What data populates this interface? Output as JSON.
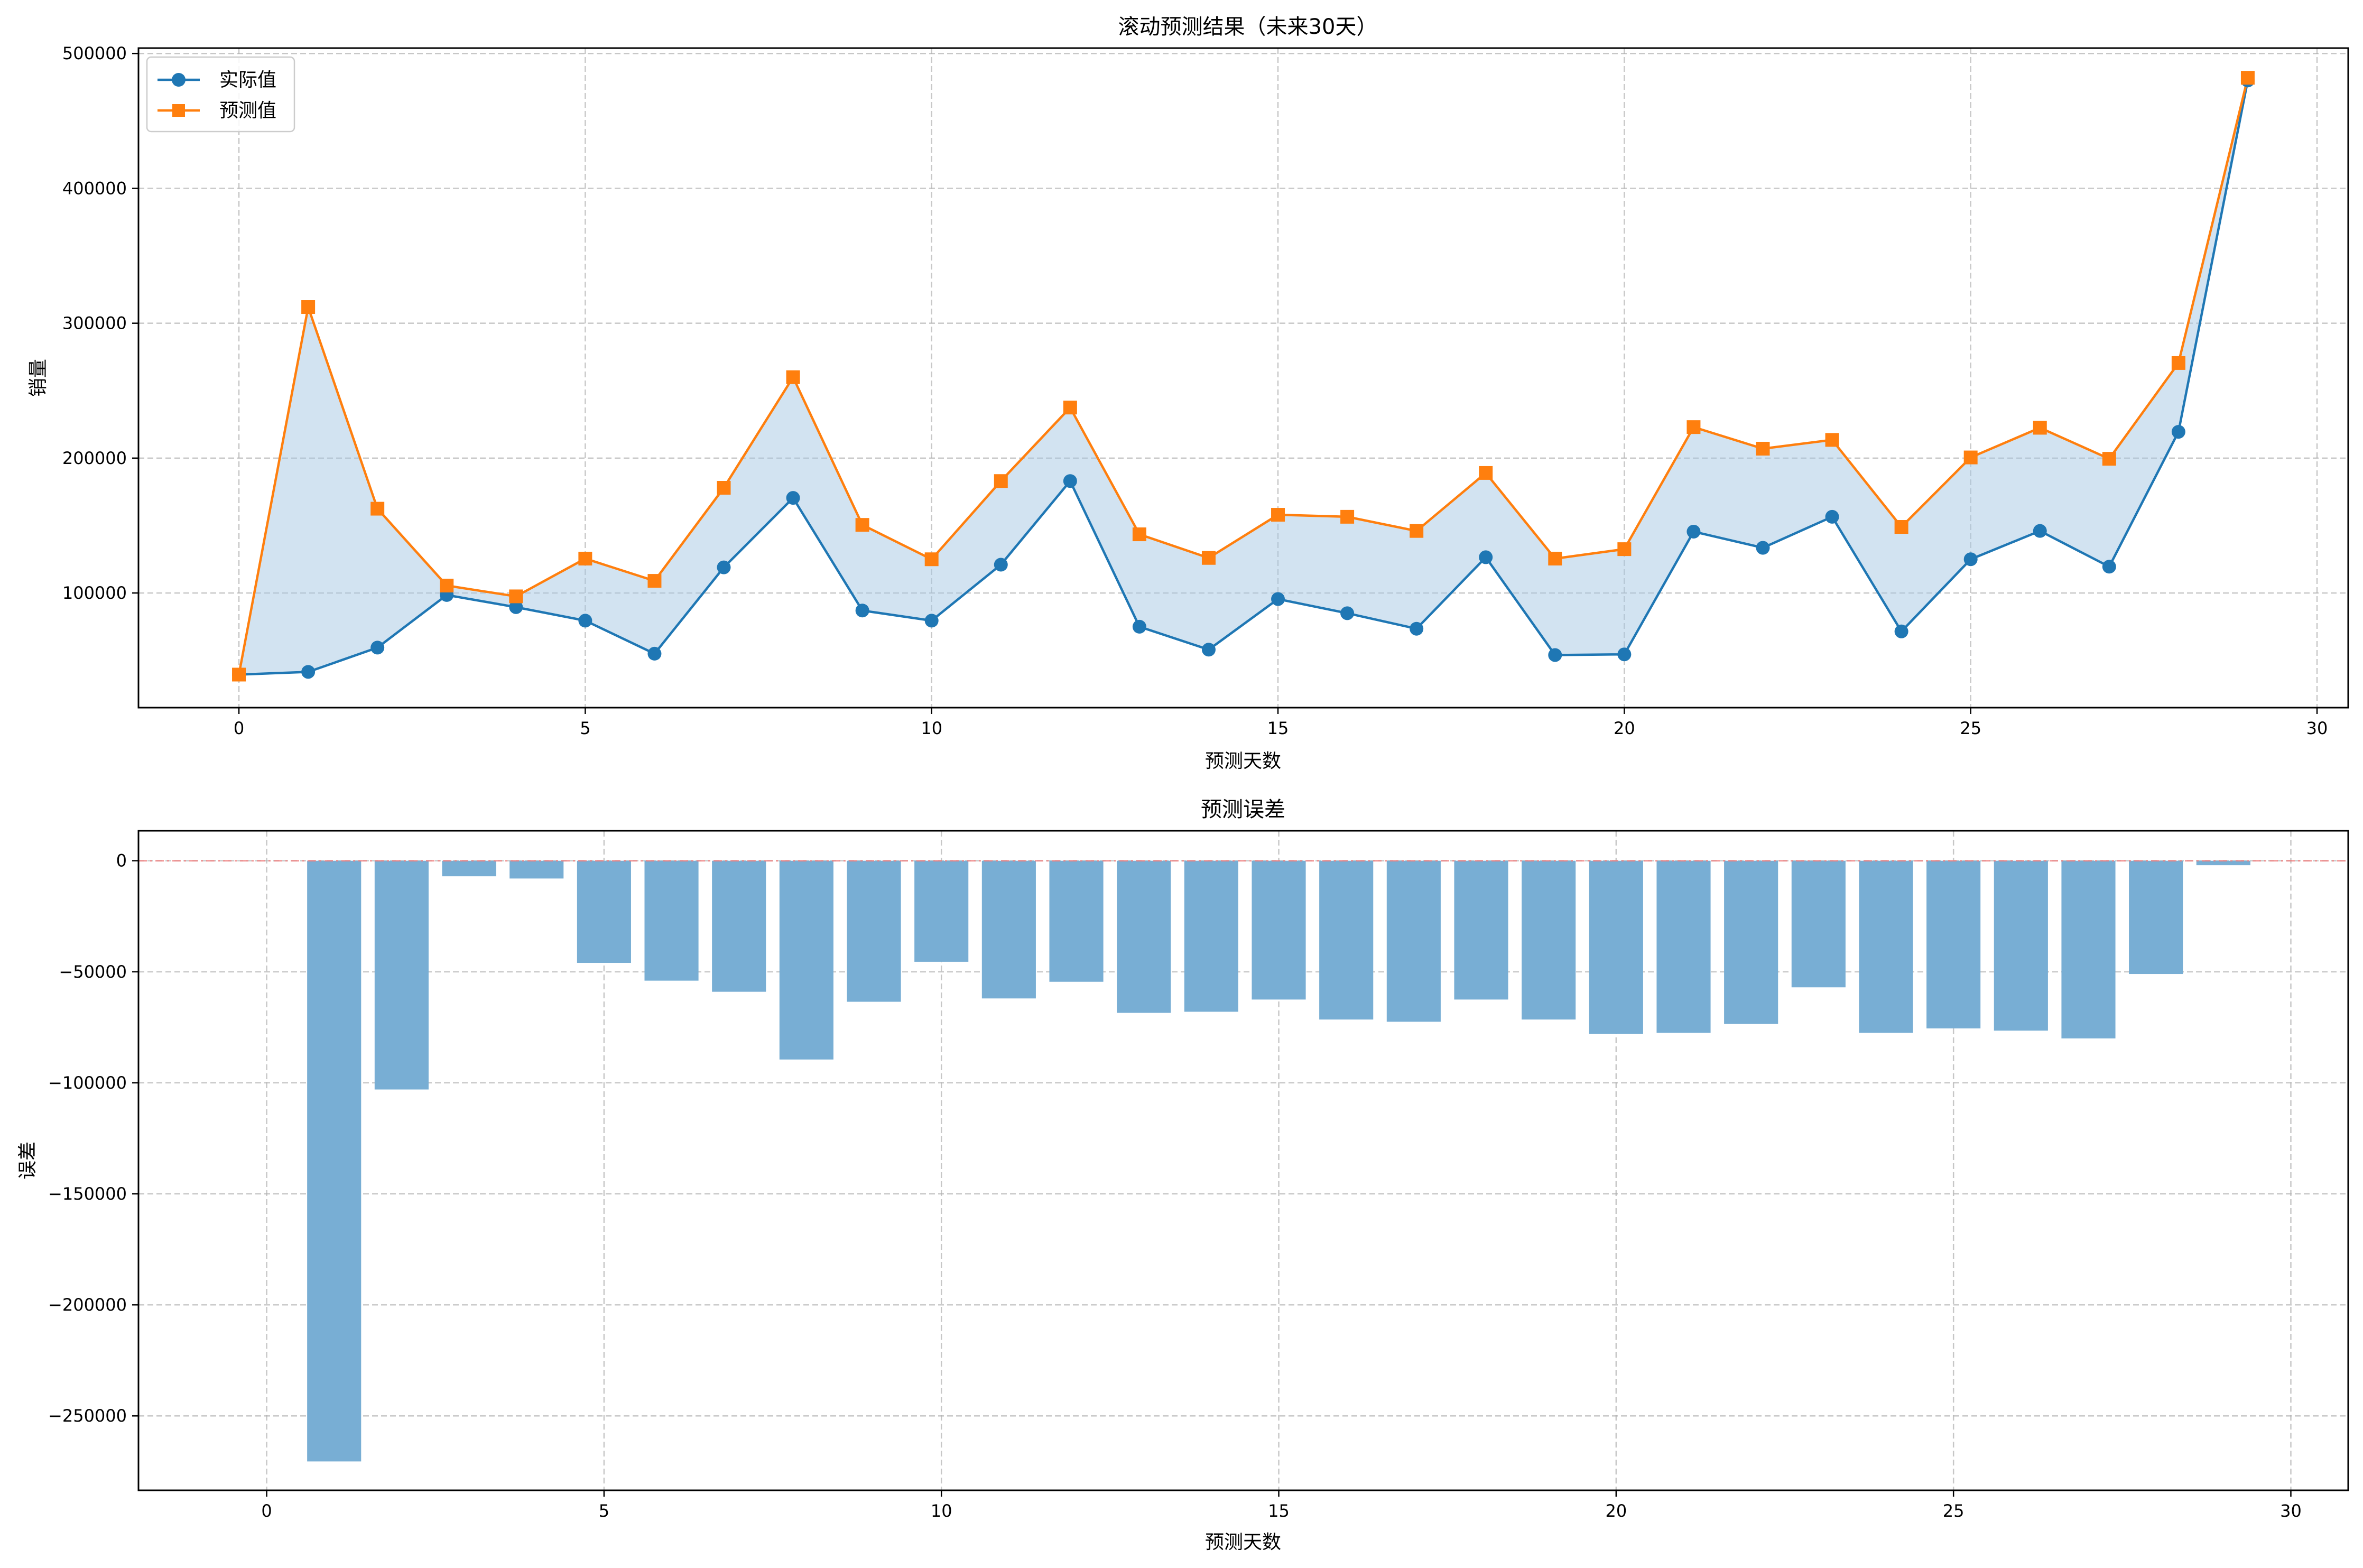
{
  "colors": {
    "actual": "#1f77b4",
    "predicted": "#ff7f0e",
    "fill": "#a6c8e3",
    "bar": "#78aed4",
    "zero_line": "#f08080"
  },
  "legend_position": "upper-left",
  "grid": true,
  "chart_data": [
    {
      "type": "line",
      "title": "滚动预测结果（未来30天）",
      "xlabel": "预测天数",
      "ylabel": "销量",
      "x": [
        0,
        1,
        2,
        3,
        4,
        5,
        6,
        7,
        8,
        9,
        10,
        11,
        12,
        13,
        14,
        15,
        16,
        17,
        18,
        19,
        20,
        21,
        22,
        23,
        24,
        25,
        26,
        27,
        28,
        29
      ],
      "series": [
        {
          "name": "实际值",
          "marker": "circle",
          "values": [
            39500,
            41500,
            59500,
            98500,
            89500,
            79500,
            55000,
            119000,
            170500,
            87000,
            79500,
            121000,
            183000,
            75000,
            58000,
            95500,
            85000,
            73500,
            126500,
            54000,
            54500,
            145500,
            133500,
            156500,
            71500,
            125000,
            146000,
            119500,
            219500,
            480000
          ]
        },
        {
          "name": "预测值",
          "marker": "square",
          "values": [
            39500,
            312000,
            162500,
            105500,
            97500,
            125500,
            109000,
            178000,
            260000,
            150500,
            125000,
            183000,
            237500,
            143500,
            126000,
            158000,
            156500,
            146000,
            189000,
            125500,
            132500,
            223000,
            207000,
            213500,
            149000,
            200500,
            222500,
            199500,
            270500,
            482000
          ]
        }
      ],
      "xlim": [
        -1.45,
        30.45
      ],
      "ylim": [
        15000,
        504000
      ],
      "xticks": [
        0,
        5,
        10,
        15,
        20,
        25,
        30
      ],
      "xtick_labels": [
        "0",
        "5",
        "10",
        "15",
        "20",
        "25",
        "30"
      ],
      "yticks": [
        100000,
        200000,
        300000,
        400000,
        500000
      ],
      "ytick_labels": [
        "100000",
        "200000",
        "300000",
        "400000",
        "500000"
      ]
    },
    {
      "type": "bar",
      "title": "预测误差",
      "xlabel": "预测天数",
      "ylabel": "误差",
      "x": [
        0,
        1,
        2,
        3,
        4,
        5,
        6,
        7,
        8,
        9,
        10,
        11,
        12,
        13,
        14,
        15,
        16,
        17,
        18,
        19,
        20,
        21,
        22,
        23,
        24,
        25,
        26,
        27,
        28,
        29
      ],
      "values": [
        0,
        -270500,
        -103000,
        -7000,
        -8000,
        -46000,
        -54000,
        -59000,
        -89500,
        -63500,
        -45500,
        -62000,
        -54500,
        -68500,
        -68000,
        -62500,
        -71500,
        -72500,
        -62500,
        -71500,
        -78000,
        -77500,
        -73500,
        -57000,
        -77500,
        -75500,
        -76500,
        -80000,
        -51000,
        -2000
      ],
      "xlim": [
        -1.9,
        30.85
      ],
      "ylim": [
        -283500,
        13500
      ],
      "xticks": [
        0,
        5,
        10,
        15,
        20,
        25,
        30
      ],
      "xtick_labels": [
        "0",
        "5",
        "10",
        "15",
        "20",
        "25",
        "30"
      ],
      "yticks": [
        0,
        -50000,
        -100000,
        -150000,
        -200000,
        -250000
      ],
      "ytick_labels": [
        "0",
        "−50000",
        "−100000",
        "−150000",
        "−200000",
        "−250000"
      ],
      "zero_line": true
    }
  ]
}
